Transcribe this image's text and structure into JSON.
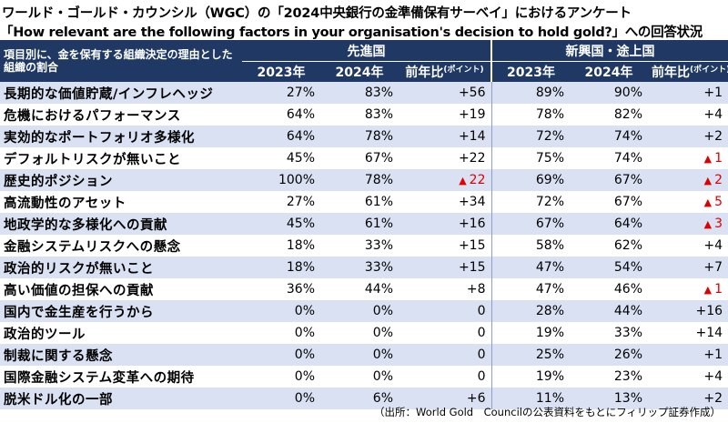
{
  "title_line1": "ワールド・ゴールド・カウンシル（WGC）の「2024中央銀行の金準備保有サーベイ」におけるアンケート",
  "title_line2": "「How relevant are the following factors in your organisation's decision to hold gold?」への回答状況",
  "header": {
    "row_label": "項目別に、金を保有する組織決定の理由とした組織の割合",
    "group_advanced": "先進国",
    "group_emerging": "新興国・途上国",
    "col_2023": "2023年",
    "col_2024": "2024年",
    "col_change": "前年比",
    "col_change_unit": "(ポイント)"
  },
  "rows": [
    {
      "label": "長期的な価値貯蔵/インフレヘッジ",
      "a23": "27%",
      "a24": "83%",
      "ach": "+56",
      "ach_neg": false,
      "e23": "89%",
      "e24": "90%",
      "ech": "+1",
      "ech_neg": false
    },
    {
      "label": "危機におけるパフォーマンス",
      "a23": "64%",
      "a24": "83%",
      "ach": "+19",
      "ach_neg": false,
      "e23": "78%",
      "e24": "82%",
      "ech": "+4",
      "ech_neg": false
    },
    {
      "label": "実効的なポートフォリオ多様化",
      "a23": "64%",
      "a24": "78%",
      "ach": "+14",
      "ach_neg": false,
      "e23": "72%",
      "e24": "74%",
      "ech": "+2",
      "ech_neg": false
    },
    {
      "label": "デフォルトリスクが無いこと",
      "a23": "45%",
      "a24": "67%",
      "ach": "+22",
      "ach_neg": false,
      "e23": "75%",
      "e24": "74%",
      "ech": "1",
      "ech_neg": true
    },
    {
      "label": "歴史的ポジション",
      "a23": "100%",
      "a24": "78%",
      "ach": "22",
      "ach_neg": true,
      "e23": "69%",
      "e24": "67%",
      "ech": "2",
      "ech_neg": true
    },
    {
      "label": "高流動性のアセット",
      "a23": "27%",
      "a24": "61%",
      "ach": "+34",
      "ach_neg": false,
      "e23": "72%",
      "e24": "67%",
      "ech": "5",
      "ech_neg": true
    },
    {
      "label": "地政学的な多様化への貢献",
      "a23": "45%",
      "a24": "61%",
      "ach": "+16",
      "ach_neg": false,
      "e23": "67%",
      "e24": "64%",
      "ech": "3",
      "ech_neg": true
    },
    {
      "label": "金融システムリスクへの懸念",
      "a23": "18%",
      "a24": "33%",
      "ach": "+15",
      "ach_neg": false,
      "e23": "58%",
      "e24": "62%",
      "ech": "+4",
      "ech_neg": false
    },
    {
      "label": "政治的リスクが無いこと",
      "a23": "18%",
      "a24": "33%",
      "ach": "+15",
      "ach_neg": false,
      "e23": "47%",
      "e24": "54%",
      "ech": "+7",
      "ech_neg": false
    },
    {
      "label": "高い価値の担保への貢献",
      "a23": "36%",
      "a24": "44%",
      "ach": "+8",
      "ach_neg": false,
      "e23": "47%",
      "e24": "46%",
      "ech": "1",
      "ech_neg": true
    },
    {
      "label": "国内で金生産を行うから",
      "a23": "0%",
      "a24": "0%",
      "ach": "0",
      "ach_neg": false,
      "e23": "28%",
      "e24": "44%",
      "ech": "+16",
      "ech_neg": false
    },
    {
      "label": "政治的ツール",
      "a23": "0%",
      "a24": "0%",
      "ach": "0",
      "ach_neg": false,
      "e23": "19%",
      "e24": "33%",
      "ech": "+14",
      "ech_neg": false
    },
    {
      "label": "制裁に関する懸念",
      "a23": "0%",
      "a24": "0%",
      "ach": "0",
      "ach_neg": false,
      "e23": "25%",
      "e24": "26%",
      "ech": "+1",
      "ech_neg": false
    },
    {
      "label": "国際金融システム変革への期待",
      "a23": "0%",
      "a24": "0%",
      "ach": "0",
      "ach_neg": false,
      "e23": "19%",
      "e24": "23%",
      "ech": "+4",
      "ech_neg": false
    },
    {
      "label": "脱米ドル化の一部",
      "a23": "0%",
      "a24": "6%",
      "ach": "+6",
      "ach_neg": false,
      "e23": "11%",
      "e24": "13%",
      "ech": "+2",
      "ech_neg": false
    }
  ],
  "footnote": "（出所：World Gold　Councilの公表資料をもとにフィリップ証券作成）",
  "colors": {
    "header_bg": "#1f3864",
    "band": "#d9e1f2",
    "negative": "#e00000"
  }
}
